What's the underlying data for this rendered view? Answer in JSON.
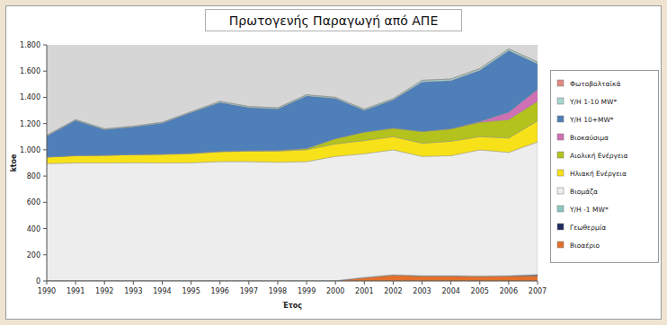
{
  "chart_data": {
    "type": "area",
    "title": "Πρωτογενής Παραγωγή από ΑΠΕ",
    "x_label": "Έτος",
    "y_label": "ktoe",
    "stacked": true,
    "grid": false,
    "legend": "right",
    "categories": [
      "1990",
      "1991",
      "1992",
      "1993",
      "1994",
      "1995",
      "1996",
      "1997",
      "1998",
      "1999",
      "2000",
      "2001",
      "2002",
      "2003",
      "2004",
      "2005",
      "2006",
      "2007"
    ],
    "ylim": [
      0,
      1800
    ],
    "yticks": [
      0,
      200,
      400,
      600,
      800,
      {
        "value": 1000,
        "label": "1.000"
      },
      {
        "value": 1200,
        "label": "1.200"
      },
      {
        "value": 1400,
        "label": "1.400"
      },
      {
        "value": 1600,
        "label": "1.600"
      },
      {
        "value": 1800,
        "label": "1.800"
      }
    ],
    "series": [
      {
        "name": "Φωτοβολταϊκά",
        "color": "#e08a84",
        "values": [
          0,
          0,
          0,
          0,
          0,
          0,
          0,
          0,
          0,
          0,
          0,
          0,
          0,
          0,
          0,
          1,
          1,
          1
        ]
      },
      {
        "name": "Υ/Η 1-10 MW*",
        "color": "#a6d6cf",
        "values": [
          5,
          5,
          5,
          5,
          5,
          5,
          8,
          8,
          8,
          8,
          8,
          8,
          8,
          12,
          12,
          12,
          12,
          12
        ]
      },
      {
        "name": "Υ/Η 10+MW*",
        "color": "#4f7fb8",
        "values": [
          160,
          269,
          196,
          211,
          238,
          311,
          374,
          329,
          317,
          402,
          307,
          167,
          217,
          378,
          368,
          392,
          472,
          197
        ]
      },
      {
        "name": "Βιοκαύσιμα",
        "color": "#cf6fb4",
        "values": [
          0,
          0,
          0,
          0,
          0,
          0,
          0,
          0,
          0,
          0,
          0,
          0,
          0,
          0,
          0,
          5,
          55,
          90
        ]
      },
      {
        "name": "Αιολική Ενέργεια",
        "color": "#b3c21c",
        "values": [
          0,
          1,
          1,
          1,
          2,
          3,
          3,
          3,
          5,
          10,
          40,
          65,
          65,
          90,
          95,
          110,
          140,
          150
        ]
      },
      {
        "name": "Ηλιακή Ενέργεια",
        "color": "#f7e21a",
        "values": [
          50,
          55,
          58,
          62,
          65,
          70,
          75,
          80,
          85,
          90,
          95,
          100,
          100,
          100,
          110,
          100,
          110,
          160
        ]
      },
      {
        "name": "Βιομάζα",
        "color": "#ededed",
        "values": [
          892,
          897,
          897,
          898,
          897,
          898,
          907,
          907,
          902,
          907,
          947,
          942,
          952,
          909,
          914,
          962,
          939,
          1011
        ]
      },
      {
        "name": "Υ/Η -1 MW*",
        "color": "#8cc7bf",
        "values": [
          1,
          1,
          1,
          1,
          1,
          1,
          1,
          1,
          1,
          1,
          1,
          1,
          1,
          1,
          1,
          1,
          1,
          1
        ]
      },
      {
        "name": "Γεωθερμία",
        "color": "#1f2a5e",
        "values": [
          2,
          2,
          2,
          2,
          2,
          2,
          2,
          2,
          2,
          2,
          2,
          2,
          2,
          2,
          2,
          2,
          2,
          8
        ]
      },
      {
        "name": "Βιοαέριο",
        "color": "#e2702c",
        "values": [
          0,
          0,
          0,
          0,
          0,
          0,
          0,
          0,
          0,
          0,
          0,
          25,
          45,
          38,
          38,
          35,
          38,
          40
        ]
      }
    ]
  }
}
